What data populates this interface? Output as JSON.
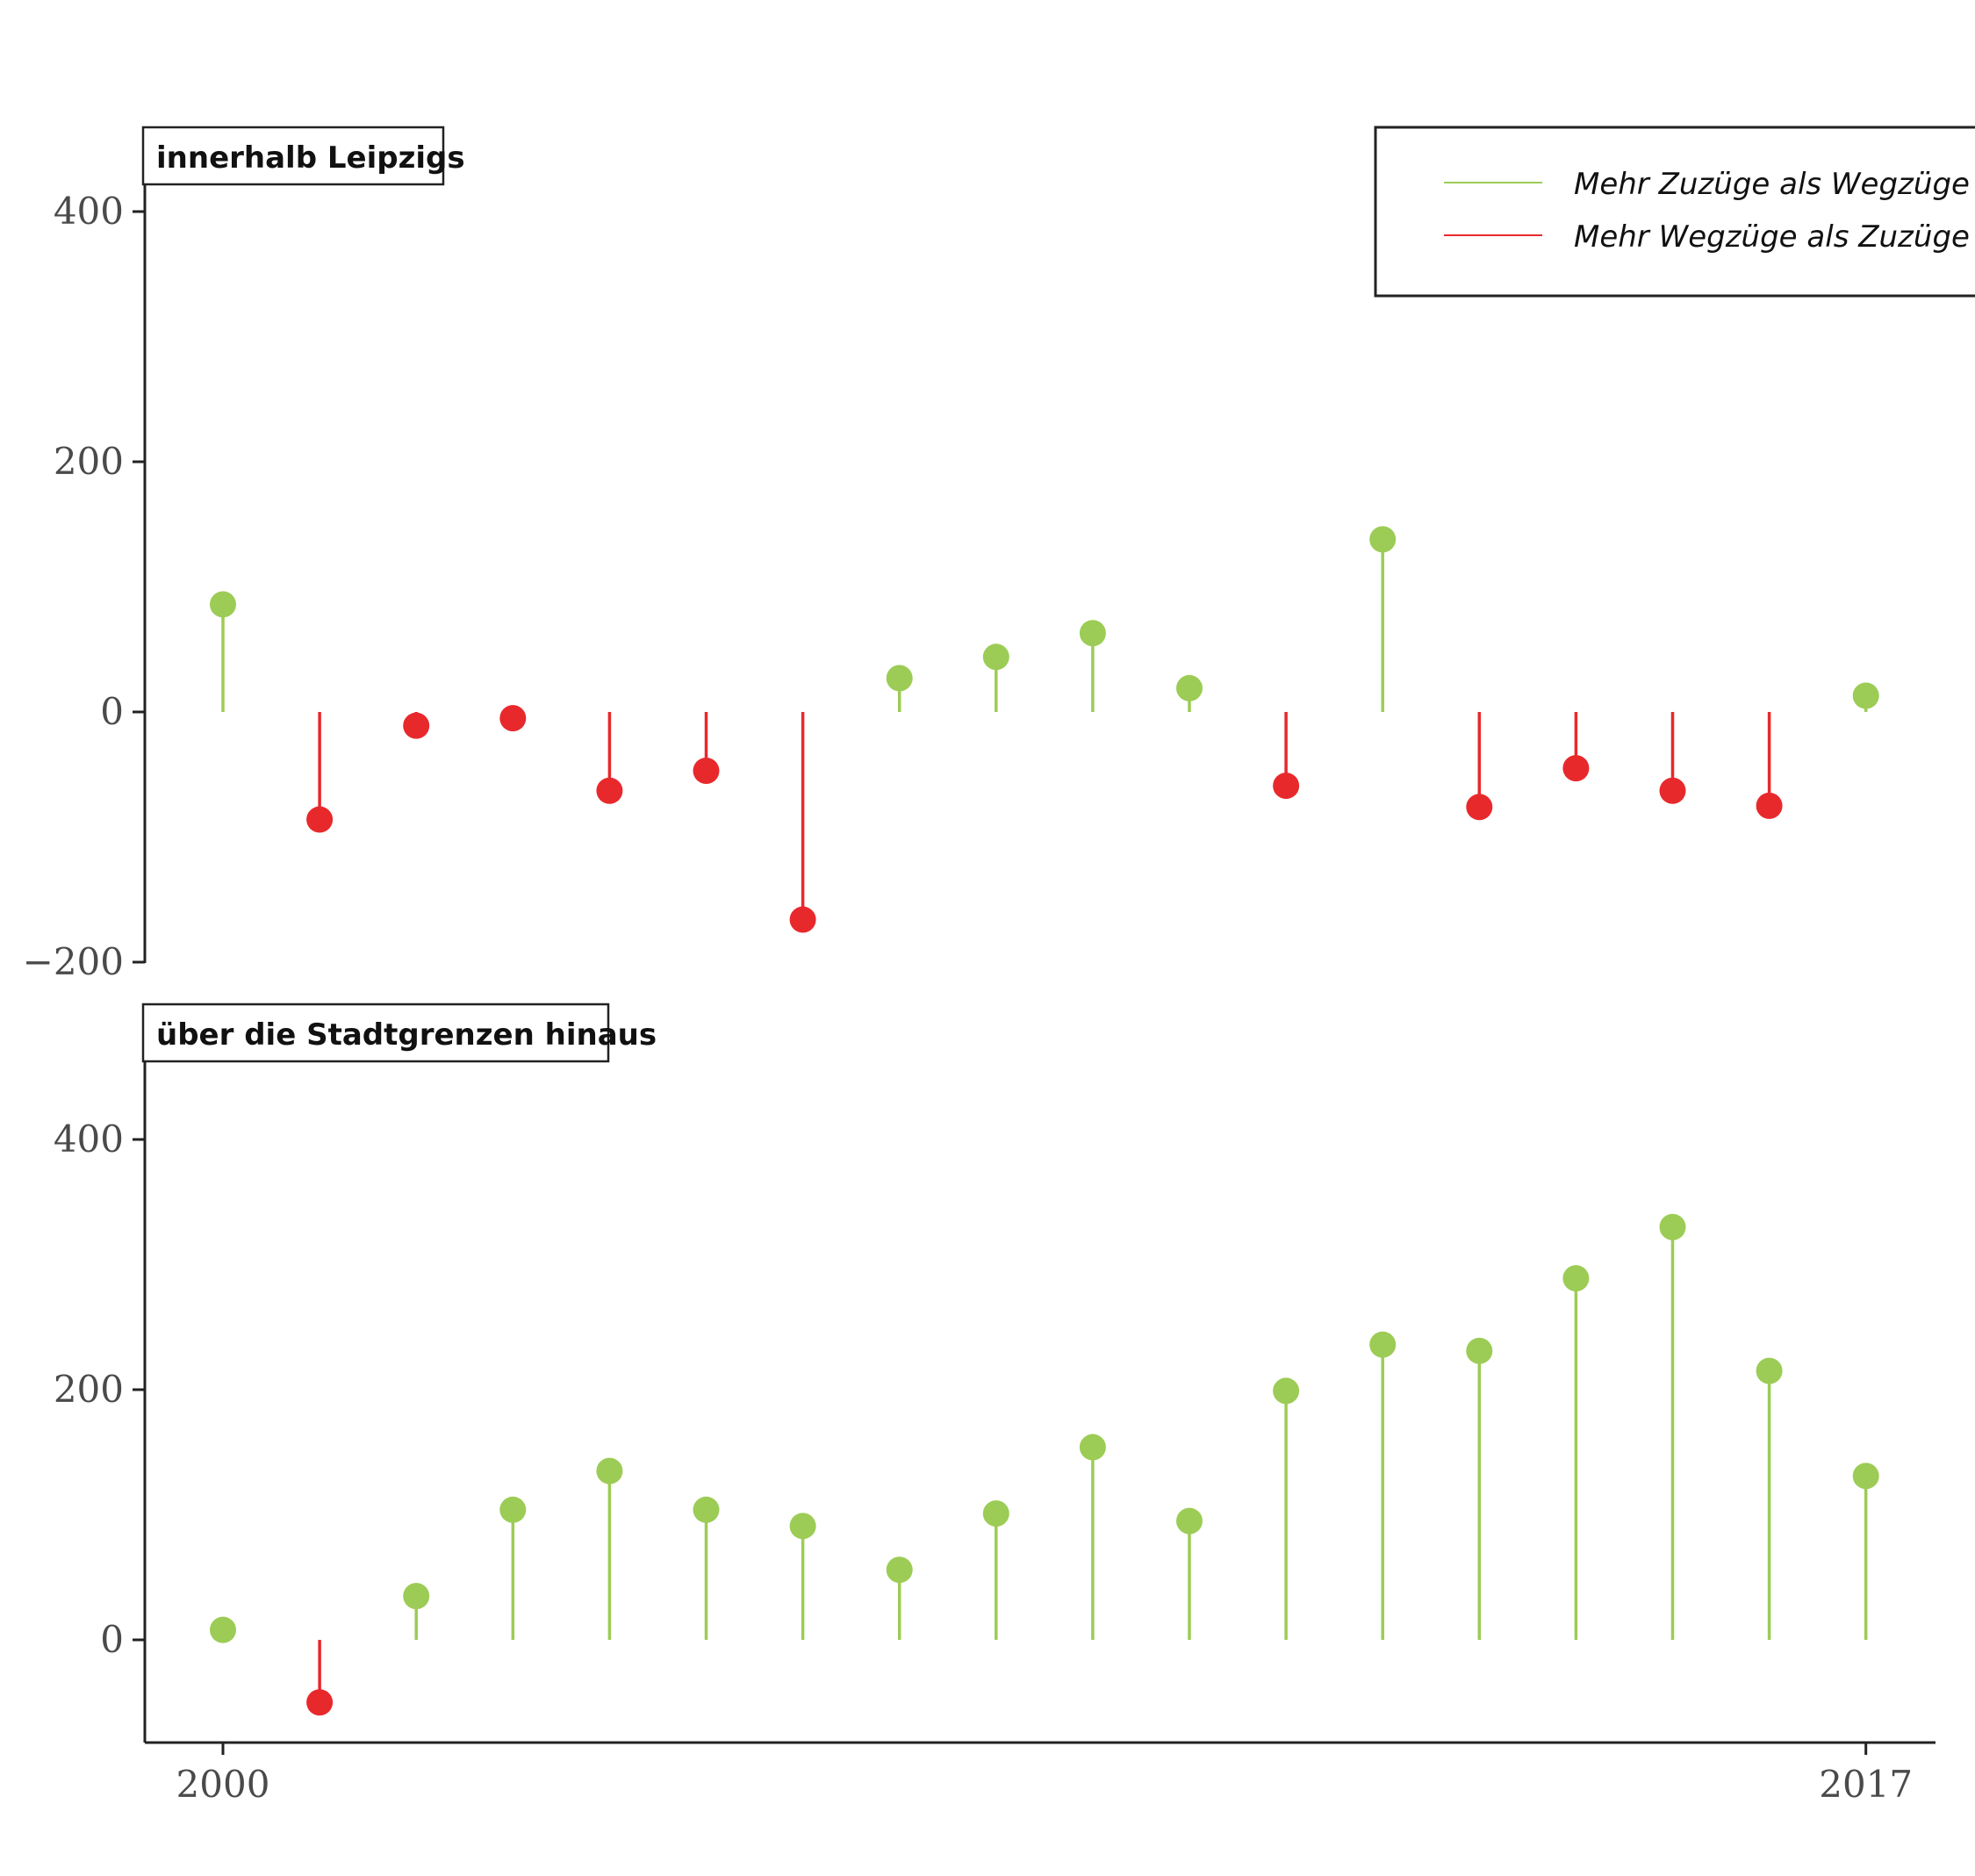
{
  "colors": {
    "positive": "#9ccc55",
    "negative": "#e8292c",
    "axis": "#222222"
  },
  "legend": {
    "position": "top-right",
    "items": [
      {
        "label": "Mehr Zuzüge als Wegzüge",
        "color": "#9ccc55"
      },
      {
        "label": "Mehr Wegzüge als Zuzüge",
        "color": "#e8292c"
      }
    ]
  },
  "chart_data": [
    {
      "type": "lollipop",
      "title": "innerhalb Leipzigs",
      "xlabel": "",
      "ylabel": "",
      "x": [
        2000,
        2001,
        2002,
        2003,
        2004,
        2005,
        2006,
        2007,
        2008,
        2009,
        2010,
        2011,
        2012,
        2013,
        2014,
        2015,
        2016,
        2017
      ],
      "values": [
        86,
        -86,
        -11,
        -5,
        -63,
        -47,
        -166,
        27,
        44,
        63,
        19,
        -59,
        138,
        -76,
        -45,
        -63,
        -75,
        13
      ],
      "ylim": [
        -200,
        460
      ],
      "yticks": [
        400,
        200,
        0,
        -200
      ],
      "ytick_labels": [
        "400",
        "200",
        "0",
        "−200"
      ]
    },
    {
      "type": "lollipop",
      "title": "über die Stadtgrenzen hinaus",
      "xlabel": "",
      "ylabel": "",
      "x": [
        2000,
        2001,
        2002,
        2003,
        2004,
        2005,
        2006,
        2007,
        2008,
        2009,
        2010,
        2011,
        2012,
        2013,
        2014,
        2015,
        2016,
        2017
      ],
      "values": [
        8,
        -50,
        35,
        104,
        135,
        104,
        91,
        56,
        101,
        154,
        95,
        199,
        236,
        231,
        289,
        330,
        215,
        131
      ],
      "ylim": [
        -82,
        460
      ],
      "yticks": [
        400,
        200,
        0
      ],
      "ytick_labels": [
        "400",
        "200",
        "0"
      ],
      "xticks": [
        2000,
        2017
      ],
      "xtick_labels": [
        "2000",
        "2017"
      ]
    }
  ]
}
